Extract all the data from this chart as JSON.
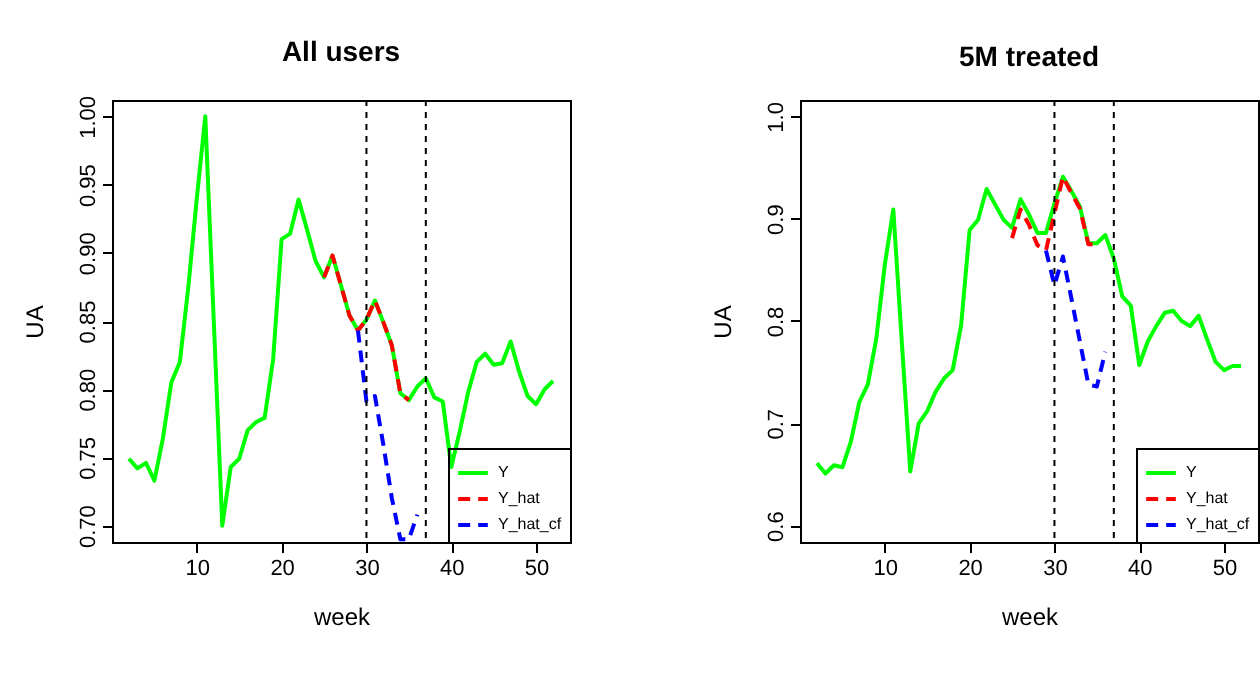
{
  "chart_data": [
    {
      "type": "line",
      "title": "All users",
      "xlabel": "week",
      "ylabel": "UA",
      "xlim": [
        0,
        54
      ],
      "xticks": [
        10,
        20,
        30,
        40,
        50
      ],
      "ylim": [
        0.688,
        1.012
      ],
      "yticks": [
        {
          "value": 0.7,
          "label": "0.70"
        },
        {
          "value": 0.75,
          "label": "0.75"
        },
        {
          "value": 0.8,
          "label": "0.80"
        },
        {
          "value": 0.85,
          "label": "0.85"
        },
        {
          "value": 0.9,
          "label": "0.90"
        },
        {
          "value": 0.95,
          "label": "0.95"
        },
        {
          "value": 1.0,
          "label": "1.00"
        }
      ],
      "legend": "bottom right",
      "x": [
        2,
        3,
        4,
        5,
        6,
        7,
        8,
        9,
        10,
        11,
        12,
        13,
        14,
        15,
        16,
        17,
        18,
        19,
        20,
        21,
        22,
        23,
        24,
        25,
        26,
        27,
        28,
        29,
        30,
        31,
        32,
        33,
        34,
        35,
        36,
        37,
        38,
        39,
        40,
        41,
        42,
        43,
        44,
        45,
        46,
        47,
        48,
        49,
        50,
        51,
        52
      ],
      "series": [
        {
          "name": "Y",
          "color": "#00ff00",
          "line_style": "solid",
          "values": [
            0.749,
            0.742,
            0.746,
            0.733,
            0.764,
            0.805,
            0.82,
            0.875,
            0.94,
            1.0,
            0.85,
            0.7,
            0.743,
            0.749,
            0.77,
            0.776,
            0.779,
            0.822,
            0.91,
            0.914,
            0.939,
            0.917,
            0.894,
            0.882,
            0.898,
            0.876,
            0.854,
            0.843,
            0.851,
            0.865,
            0.849,
            0.832,
            0.797,
            0.792,
            0.802,
            0.808,
            0.794,
            0.791,
            0.743,
            0.769,
            0.798,
            0.82,
            0.826,
            0.818,
            0.819,
            0.835,
            0.813,
            0.795,
            0.789,
            0.8,
            0.806
          ]
        },
        {
          "name": "Y_hat",
          "color": "#ff0000",
          "line_style": "dashed",
          "x": [
            25,
            26,
            27,
            28,
            29,
            30,
            31,
            32,
            33,
            34,
            35
          ],
          "values": [
            0.882,
            0.898,
            0.876,
            0.854,
            0.843,
            0.851,
            0.865,
            0.849,
            0.832,
            0.797,
            0.792
          ]
        },
        {
          "name": "Y_hat_cf",
          "color": "#0000ff",
          "line_style": "dashed",
          "x": [
            29,
            30,
            31,
            32,
            33,
            34,
            35,
            36
          ],
          "values": [
            0.843,
            0.791,
            0.795,
            0.759,
            0.72,
            0.69,
            0.69,
            0.708
          ]
        }
      ],
      "ref_lines": [
        {
          "axis": "x",
          "value": 30,
          "color": "#000000",
          "line_style": "dotted"
        },
        {
          "axis": "x",
          "value": 37,
          "color": "#000000",
          "line_style": "dotted"
        }
      ]
    },
    {
      "type": "line",
      "title": "5M treated",
      "xlabel": "week",
      "ylabel": "UA",
      "xlim": [
        0,
        54
      ],
      "xticks": [
        10,
        20,
        30,
        40,
        50
      ],
      "ylim": [
        0.584,
        1.016
      ],
      "yticks": [
        0.6,
        0.7,
        0.8,
        0.9,
        {
          "value": 1.0,
          "label": "1.0"
        }
      ],
      "legend": "bottom right",
      "x": [
        2,
        3,
        4,
        5,
        6,
        7,
        8,
        9,
        10,
        11,
        12,
        13,
        14,
        15,
        16,
        17,
        18,
        19,
        20,
        21,
        22,
        23,
        24,
        25,
        26,
        27,
        28,
        29,
        30,
        31,
        32,
        33,
        34,
        35,
        36,
        37,
        38,
        39,
        40,
        41,
        42,
        43,
        44,
        45,
        46,
        47,
        48,
        49,
        50,
        51,
        52
      ],
      "series": [
        {
          "name": "Y",
          "color": "#00ff00",
          "line_style": "solid",
          "values": [
            0.661,
            0.651,
            0.659,
            0.657,
            0.682,
            0.721,
            0.738,
            0.783,
            0.855,
            0.909,
            0.78,
            0.653,
            0.7,
            0.712,
            0.731,
            0.744,
            0.752,
            0.796,
            0.889,
            0.899,
            0.929,
            0.914,
            0.899,
            0.891,
            0.919,
            0.904,
            0.886,
            0.886,
            0.915,
            0.941,
            0.927,
            0.912,
            0.876,
            0.876,
            0.884,
            0.861,
            0.824,
            0.815,
            0.757,
            0.78,
            0.795,
            0.808,
            0.81,
            0.8,
            0.795,
            0.805,
            0.782,
            0.76,
            0.752,
            0.756,
            0.756
          ]
        },
        {
          "name": "Y_hat",
          "color": "#ff0000",
          "line_style": "dashed",
          "x": [
            25,
            26,
            27,
            28,
            29,
            30,
            31,
            32,
            33,
            34,
            35
          ],
          "values": [
            0.881,
            0.909,
            0.894,
            0.874,
            0.869,
            0.905,
            0.941,
            0.925,
            0.91,
            0.875,
            0.875
          ]
        },
        {
          "name": "Y_hat_cf",
          "color": "#0000ff",
          "line_style": "dashed",
          "x": [
            29,
            30,
            31,
            32,
            33,
            34,
            35,
            36
          ],
          "values": [
            0.869,
            0.835,
            0.863,
            0.822,
            0.78,
            0.738,
            0.736,
            0.77
          ]
        }
      ],
      "ref_lines": [
        {
          "axis": "x",
          "value": 30,
          "color": "#000000",
          "line_style": "dotted"
        },
        {
          "axis": "x",
          "value": 37,
          "color": "#000000",
          "line_style": "dotted"
        }
      ]
    }
  ]
}
